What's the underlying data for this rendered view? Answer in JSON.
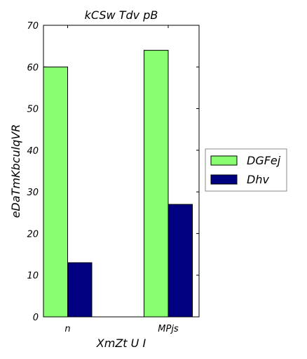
{
  "chart_data": {
    "type": "bar",
    "title": "kCSw  Tdv pB",
    "xlabel": "XmZt U I",
    "ylabel": "eDaTmKbculqVR",
    "categories": [
      "n",
      "MPjs"
    ],
    "ylim": [
      0,
      70
    ],
    "yticks": [
      0,
      10,
      20,
      30,
      40,
      50,
      60,
      70
    ],
    "grid": false,
    "legend_position": "right",
    "series": [
      {
        "name": "DGFej",
        "values": [
          60,
          64
        ],
        "color": "#88ff70"
      },
      {
        "name": "Dhv",
        "values": [
          13,
          27
        ],
        "color": "#000080"
      }
    ]
  }
}
